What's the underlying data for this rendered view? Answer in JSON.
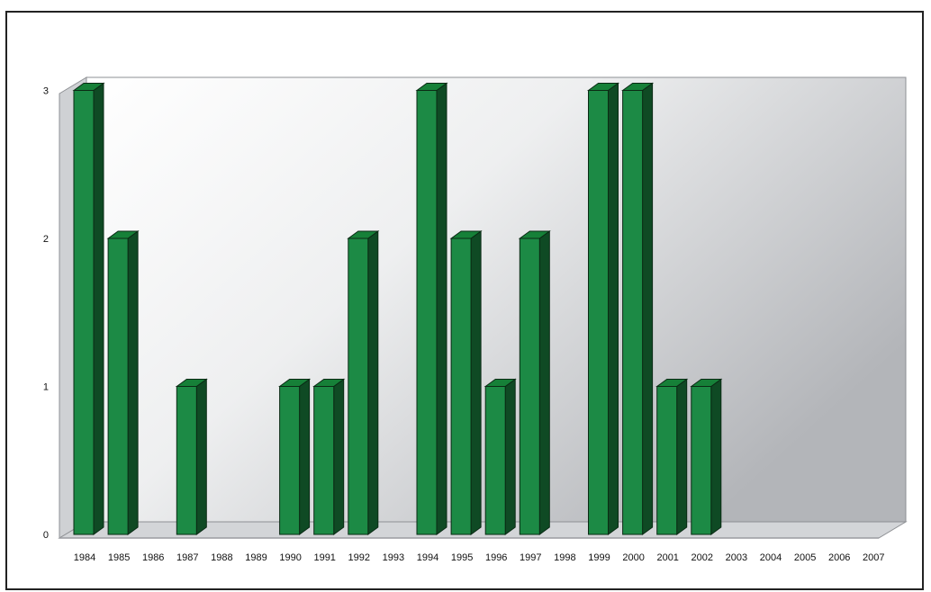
{
  "chart_data": {
    "type": "bar",
    "title": "",
    "xlabel": "",
    "ylabel": "",
    "categories": [
      "1984",
      "1985",
      "1986",
      "1987",
      "1988",
      "1989",
      "1990",
      "1991",
      "1992",
      "1993",
      "1994",
      "1995",
      "1996",
      "1997",
      "1998",
      "1999",
      "2000",
      "2001",
      "2002",
      "2003",
      "2004",
      "2005",
      "2006",
      "2007"
    ],
    "values": [
      3,
      2,
      0,
      1,
      0,
      0,
      1,
      1,
      2,
      0,
      3,
      2,
      1,
      2,
      0,
      3,
      3,
      1,
      1,
      0,
      0,
      0,
      0,
      0
    ],
    "ylim": [
      0,
      3
    ],
    "yticks": [
      "0",
      "1",
      "2",
      "3"
    ],
    "grid": false,
    "legend": "none",
    "three_d": true,
    "colors": {
      "bar_front": "#1c8a45",
      "bar_side": "#0f4a24",
      "bar_top": "#168038",
      "bar_stroke": "#0a2a14",
      "wall_light": "#ffffff",
      "wall_dark": "#b7b9bd",
      "floor": "#c9cbcf"
    }
  }
}
